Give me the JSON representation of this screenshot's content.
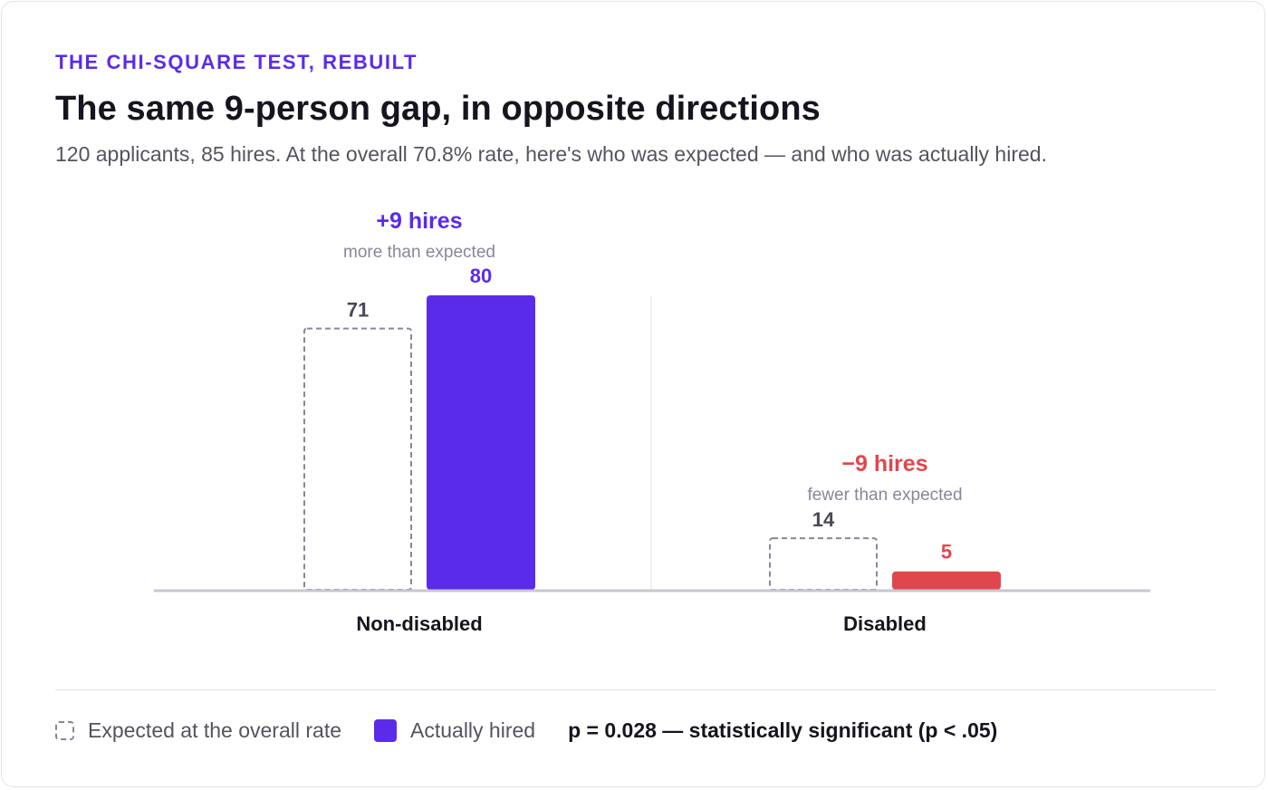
{
  "header": {
    "eyebrow": "THE CHI-SQUARE TEST, REBUILT",
    "title": "The same 9-person gap, in opposite directions",
    "subtitle": "120 applicants, 85 hires. At the overall 70.8% rate, here's who was expected — and who was actually hired."
  },
  "chart_data": {
    "type": "bar",
    "categories": [
      "Non-disabled",
      "Disabled"
    ],
    "series": [
      {
        "name": "Expected at the overall rate",
        "values": [
          71,
          14
        ],
        "style": "dashed-outline",
        "color": "#8a8699"
      },
      {
        "name": "Actually hired",
        "values": [
          80,
          5
        ],
        "colors": [
          "#5b2bea",
          "#e0474c"
        ]
      }
    ],
    "ylim": [
      0,
      80
    ],
    "annotations": [
      {
        "category": "Non-disabled",
        "headline": "+9 hires",
        "note": "more than expected",
        "color": "#5b2bea"
      },
      {
        "category": "Disabled",
        "headline": "−9 hires",
        "note": "fewer than expected",
        "color": "#e0474c"
      }
    ],
    "grid": false,
    "legend_position": "bottom-left"
  },
  "legend": {
    "expected_label": "Expected at the overall rate",
    "actual_label": "Actually hired",
    "significance": "p = 0.028 — statistically significant (p < .05)"
  },
  "colors": {
    "accent": "#5b2bea",
    "negative": "#e0474c",
    "muted": "#8a8699",
    "text": "#16141d"
  }
}
